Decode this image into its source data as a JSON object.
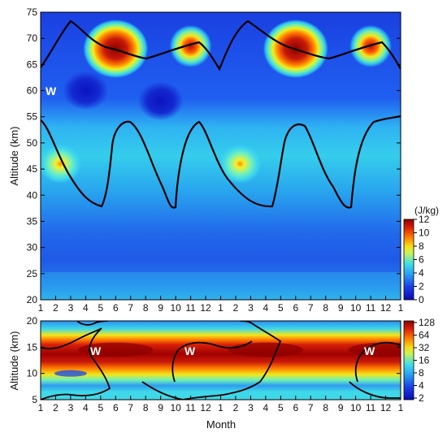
{
  "chart_data": [
    {
      "type": "heatmap",
      "title": "",
      "xlabel": "",
      "ylabel": "Altitude (km)",
      "x_ticks": [
        "1",
        "2",
        "3",
        "4",
        "5",
        "6",
        "7",
        "8",
        "9",
        "10",
        "11",
        "12",
        "1",
        "2",
        "3",
        "4",
        "5",
        "6",
        "7",
        "8",
        "9",
        "10",
        "11",
        "12",
        "1"
      ],
      "y_ticks": [
        "20",
        "25",
        "30",
        "35",
        "40",
        "45",
        "50",
        "55",
        "60",
        "65",
        "70",
        "75"
      ],
      "ylim": [
        20,
        75
      ],
      "colorbar": {
        "unit": "(J/kg)",
        "ticks": [
          "0",
          "2",
          "4",
          "6",
          "8",
          "10",
          "12"
        ],
        "scale": "linear",
        "range": [
          0,
          12
        ]
      },
      "annotations": [
        "W"
      ],
      "features": [
        {
          "x": 6,
          "y": 68,
          "value": 12
        },
        {
          "x": 11,
          "y": 68.5,
          "value": 10
        },
        {
          "x": 18,
          "y": 68,
          "value": 12
        },
        {
          "x": 23,
          "y": 68.5,
          "value": 10
        },
        {
          "x": 2.3,
          "y": 46,
          "value": 9
        },
        {
          "x": 14.3,
          "y": 46,
          "value": 9
        },
        {
          "x": 4,
          "y": 60,
          "value": 1
        },
        {
          "x": 9,
          "y": 58,
          "value": 1
        }
      ],
      "contour_zero_line": "black"
    },
    {
      "type": "heatmap",
      "title": "",
      "xlabel": "Month",
      "ylabel": "Altitude (km)",
      "x_ticks": [
        "1",
        "2",
        "3",
        "4",
        "5",
        "6",
        "7",
        "8",
        "9",
        "10",
        "11",
        "12",
        "1",
        "2",
        "3",
        "4",
        "5",
        "6",
        "7",
        "8",
        "9",
        "10",
        "11",
        "12",
        "1"
      ],
      "y_ticks": [
        "5",
        "10",
        "15",
        "20"
      ],
      "ylim": [
        5,
        20
      ],
      "colorbar": {
        "ticks": [
          "2",
          "4",
          "8",
          "16",
          "32",
          "64",
          "128"
        ],
        "scale": "log2",
        "range": [
          2,
          128
        ]
      },
      "annotations": [
        "W",
        "W",
        "W"
      ],
      "features": [
        {
          "x": 6,
          "y": 14.5,
          "value": 128
        },
        {
          "x": 16,
          "y": 14.5,
          "value": 128
        },
        {
          "x": 24,
          "y": 14.5,
          "value": 128
        },
        {
          "x": 3,
          "y": 10,
          "value": 6
        }
      ],
      "contour_zero_line": "black"
    }
  ]
}
